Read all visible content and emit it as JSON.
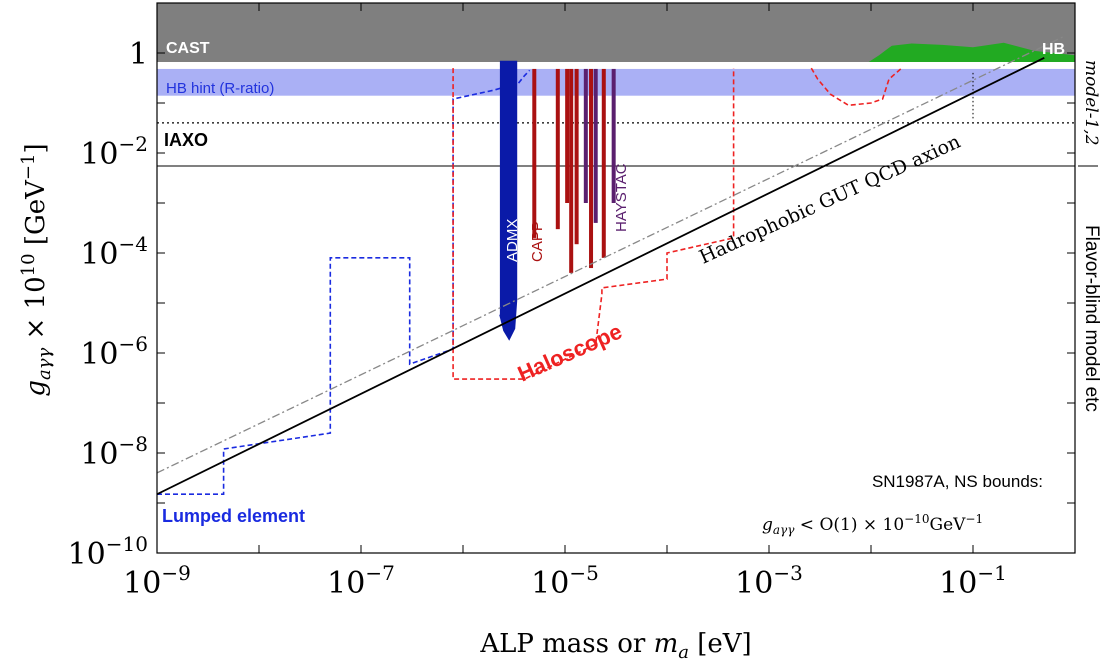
{
  "chart_data": {
    "type": "area",
    "xscale": "log",
    "yscale": "log",
    "xlim": [
      1e-09,
      1
    ],
    "ylim": [
      1e-10,
      10
    ],
    "xlabel_main": "ALP mass or ",
    "xlabel_var": "m",
    "xlabel_sub": "a",
    "xlabel_unit": " [eV]",
    "ylabel_main": "g",
    "ylabel_sub": "aγγ",
    "ylabel_times": " × 10",
    "ylabel_exp": "10",
    "ylabel_unit": " [GeV",
    "ylabel_unit_exp": "−1",
    "ylabel_close": "]",
    "x_ticks": [
      {
        "value": 1e-09,
        "base": "10",
        "exp": "−9"
      },
      {
        "value": 1e-07,
        "base": "10",
        "exp": "−7"
      },
      {
        "value": 1e-05,
        "base": "10",
        "exp": "−5"
      },
      {
        "value": 0.001,
        "base": "10",
        "exp": "−3"
      },
      {
        "value": 0.1,
        "base": "10",
        "exp": "−1"
      }
    ],
    "y_ticks": [
      {
        "value": 1e-10,
        "base": "10",
        "exp": "−10"
      },
      {
        "value": 1e-08,
        "base": "10",
        "exp": "−8"
      },
      {
        "value": 1e-06,
        "base": "10",
        "exp": "−6"
      },
      {
        "value": 0.0001,
        "base": "10",
        "exp": "−4"
      },
      {
        "value": 0.01,
        "base": "10",
        "exp": "−2"
      },
      {
        "value": 1,
        "base": "1",
        "exp": ""
      }
    ],
    "grid": false,
    "colors": {
      "cast": "#7f7f7f",
      "hb": "#22aa22",
      "hb_hint": "#aab0f5",
      "lumped": "#1a2be0",
      "haloscope": "#ee2222",
      "admx": "#0a1aa8",
      "capp": "#aa1111",
      "haystac": "#5a1f6e",
      "qcd_line": "#000000",
      "dashdot": "#888888"
    },
    "regions": {
      "cast": {
        "label": "CAST",
        "y_min": 0.66
      },
      "hb": {
        "label": "HB",
        "x_min": 0.0095,
        "hull": [
          [
            0.0095,
            0.66
          ],
          [
            0.012,
            0.9
          ],
          [
            0.016,
            1.4
          ],
          [
            0.025,
            1.55
          ],
          [
            0.05,
            1.45
          ],
          [
            0.1,
            1.3
          ],
          [
            0.2,
            1.6
          ],
          [
            0.4,
            1.1
          ],
          [
            1,
            0.9
          ]
        ]
      },
      "hb_hint": {
        "label": "HB hint (R-ratio)",
        "y_range": [
          0.14,
          0.48
        ]
      },
      "iaxo": {
        "label": "IAXO",
        "y": 0.04
      },
      "thin_line": {
        "y": 0.0055
      },
      "lumped": {
        "label": "Lumped element"
      },
      "haloscope": {
        "label": "Haloscope"
      },
      "admx": {
        "label": "ADMX",
        "x_range": [
          2.3e-06,
          3.4e-06
        ],
        "y_range": [
          7e-06,
          0.7
        ]
      },
      "capp": {
        "label": "CAPP"
      },
      "haystac": {
        "label": "HAYSTAC"
      }
    },
    "lines": {
      "qcd_axion": {
        "label": "Hadrophobic GUT QCD axion",
        "points": [
          [
            1e-09,
            1.5e-09
          ],
          [
            0.5,
            0.8
          ]
        ]
      },
      "dashdot": {
        "points": [
          [
            1e-09,
            4e-09
          ],
          [
            0.8,
            2.2
          ]
        ]
      }
    },
    "lumped_curve": [
      [
        1e-09,
        1.5e-09
      ],
      [
        4.5e-09,
        1.5e-09
      ],
      [
        4.5e-09,
        1.2e-08
      ],
      [
        5e-08,
        2.5e-08
      ],
      [
        5e-08,
        8e-05
      ],
      [
        3e-07,
        8e-05
      ],
      [
        3e-07,
        6e-07
      ],
      [
        8e-07,
        1.2e-06
      ],
      [
        8e-07,
        0.12
      ],
      [
        2e-06,
        0.18
      ],
      [
        3.5e-06,
        0.25
      ],
      [
        4e-06,
        0.35
      ],
      [
        4.5e-06,
        0.45
      ]
    ],
    "haloscope_curve": [
      [
        8e-07,
        0.5
      ],
      [
        8e-07,
        3e-07
      ],
      [
        2e-06,
        3e-07
      ],
      [
        4e-06,
        3e-07
      ],
      [
        2e-05,
        1.5e-06
      ],
      [
        2.3e-05,
        1.5e-05
      ],
      [
        2.3e-05,
        2e-05
      ],
      [
        0.0001,
        3e-05
      ],
      [
        0.0001,
        0.0001
      ],
      [
        0.00045,
        0.0002
      ],
      [
        0.00045,
        0.5
      ]
    ],
    "haloscope_dip": [
      [
        0.0026,
        0.5
      ],
      [
        0.003,
        0.3
      ],
      [
        0.004,
        0.15
      ],
      [
        0.006,
        0.09
      ],
      [
        0.01,
        0.1
      ],
      [
        0.013,
        0.12
      ],
      [
        0.015,
        0.3
      ],
      [
        0.02,
        0.5
      ]
    ],
    "capp_spikes": [
      [
        5e-06,
        0.48,
        0.0002
      ],
      [
        8.5e-06,
        0.48,
        0.0003
      ],
      [
        1.05e-05,
        0.48,
        0.001
      ],
      [
        1.15e-05,
        0.48,
        4e-05
      ],
      [
        1.3e-05,
        0.48,
        0.00015
      ],
      [
        1.8e-05,
        0.48,
        5e-05
      ],
      [
        2.4e-05,
        0.48,
        8e-05
      ]
    ],
    "haystac_spikes": [
      [
        1.6e-05,
        0.48,
        0.001
      ],
      [
        2e-05,
        0.48,
        0.0004
      ],
      [
        3e-05,
        0.48,
        0.001
      ]
    ],
    "dotted_vertical": {
      "x": 0.1,
      "y_range": [
        0.048,
        0.4
      ]
    },
    "annotations": {
      "sn1987": "SN1987A, NS bounds:",
      "bound_var": "g",
      "bound_sub": "aγγ",
      "bound_text": " < O(1) × 10",
      "bound_exp": "−10",
      "bound_unit": "GeV",
      "bound_unit_exp": "−1",
      "side_bottom": "Flavor-blind model etc",
      "side_top": "model-1,2"
    }
  }
}
